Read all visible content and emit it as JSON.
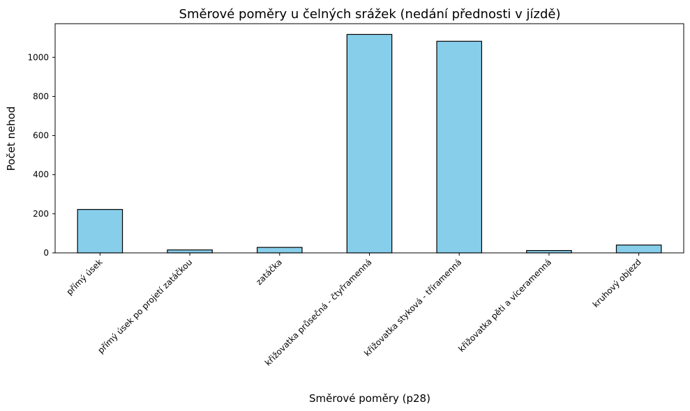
{
  "chart_data": {
    "type": "bar",
    "title": "Směrové poměry u čelných srážek (nedání přednosti v jízdě)",
    "xlabel": "Směrové poměry (p28)",
    "ylabel": "Počet nehod",
    "categories": [
      "přímý úsek",
      "přímý úsek po projetí zatáčkou",
      "zatáčka",
      "křižovatka průsečná - čtyřramenná",
      "křižovatka styková - tříramenná",
      "křižovatka pěti a víceramenná",
      "kruhový objezd"
    ],
    "values": [
      222,
      15,
      28,
      1117,
      1082,
      12,
      40
    ],
    "ylim": [
      0,
      1172
    ],
    "yticks": [
      0,
      200,
      400,
      600,
      800,
      1000
    ],
    "bar_color": "#87ceeb",
    "edge_color": "#000000",
    "grid": false,
    "legend": "none"
  }
}
